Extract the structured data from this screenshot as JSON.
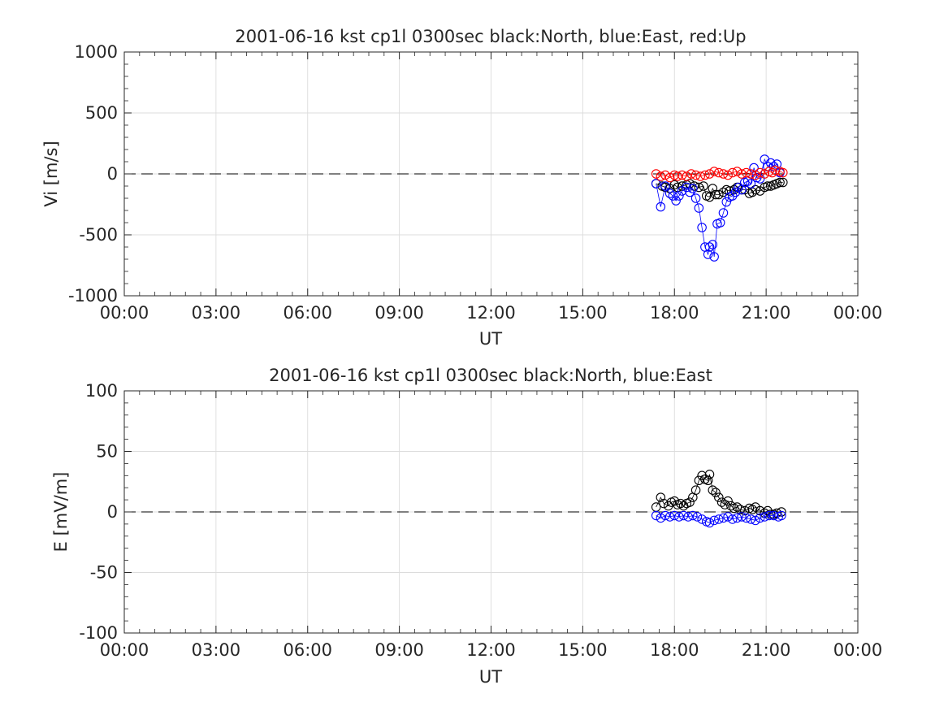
{
  "chart_data": [
    {
      "type": "scatter",
      "title": "2001-06-16 kst cp1l 0300sec black:North, blue:East, red:Up",
      "xlabel": "UT",
      "ylabel": "Vi [m/s]",
      "x_unit": "hours UT",
      "xlim": [
        0,
        24
      ],
      "ylim": [
        -1000,
        1000
      ],
      "xticks": [
        0,
        3,
        6,
        9,
        12,
        15,
        18,
        21,
        24
      ],
      "xtick_labels": [
        "00:00",
        "03:00",
        "06:00",
        "09:00",
        "12:00",
        "15:00",
        "18:00",
        "21:00",
        "00:00"
      ],
      "yticks": [
        -1000,
        -500,
        0,
        500,
        1000
      ],
      "ytick_labels": [
        "-1000",
        "-500",
        "0",
        "500",
        "1000"
      ],
      "grid": true,
      "reference_line": 0,
      "series": [
        {
          "name": "North",
          "color": "#000000",
          "x": [
            17.4,
            17.6,
            17.7,
            17.85,
            18.0,
            18.1,
            18.25,
            18.4,
            18.5,
            18.65,
            18.8,
            18.95,
            19.05,
            19.15,
            19.25,
            19.35,
            19.45,
            19.6,
            19.7,
            19.8,
            19.95,
            20.05,
            20.2,
            20.3,
            20.45,
            20.55,
            20.65,
            20.8,
            20.95,
            21.05,
            21.15,
            21.25,
            21.35,
            21.45,
            21.55
          ],
          "y": [
            -80,
            -100,
            -110,
            -120,
            -90,
            -110,
            -100,
            -90,
            -80,
            -100,
            -110,
            -100,
            -180,
            -190,
            -120,
            -170,
            -170,
            -150,
            -130,
            -140,
            -130,
            -110,
            -130,
            -130,
            -160,
            -150,
            -130,
            -140,
            -110,
            -100,
            -100,
            -90,
            -80,
            -70,
            -70
          ]
        },
        {
          "name": "East",
          "color": "#0000ff",
          "x": [
            17.4,
            17.55,
            17.7,
            17.85,
            17.95,
            18.05,
            18.15,
            18.25,
            18.4,
            18.5,
            18.6,
            18.7,
            18.8,
            18.9,
            19.0,
            19.1,
            19.15,
            19.25,
            19.3,
            19.4,
            19.5,
            19.6,
            19.7,
            19.8,
            19.9,
            20.0,
            20.1,
            20.2,
            20.3,
            20.4,
            20.5,
            20.6,
            20.7,
            20.8,
            20.95,
            21.05,
            21.15,
            21.25,
            21.35,
            21.45
          ],
          "y": [
            -80,
            -270,
            -100,
            -160,
            -180,
            -220,
            -180,
            -140,
            -110,
            -150,
            -120,
            -200,
            -280,
            -440,
            -600,
            -660,
            -600,
            -580,
            -680,
            -410,
            -400,
            -320,
            -230,
            -190,
            -180,
            -150,
            -110,
            -130,
            -70,
            -60,
            -80,
            50,
            -30,
            -40,
            120,
            60,
            90,
            60,
            80,
            10
          ]
        },
        {
          "name": "Up",
          "color": "#ff0000",
          "x": [
            17.4,
            17.55,
            17.7,
            17.85,
            18.0,
            18.1,
            18.25,
            18.4,
            18.55,
            18.7,
            18.85,
            19.0,
            19.15,
            19.3,
            19.45,
            19.6,
            19.75,
            19.9,
            20.05,
            20.2,
            20.35,
            20.5,
            20.65,
            20.8,
            20.95,
            21.1,
            21.2,
            21.3,
            21.45,
            21.55
          ],
          "y": [
            0,
            -20,
            -10,
            -30,
            -10,
            -20,
            -10,
            -20,
            0,
            -10,
            -20,
            -10,
            0,
            20,
            10,
            0,
            -10,
            10,
            20,
            0,
            10,
            0,
            -10,
            10,
            0,
            20,
            10,
            30,
            20,
            10
          ]
        }
      ]
    },
    {
      "type": "scatter",
      "title": "2001-06-16 kst cp1l 0300sec black:North, blue:East",
      "xlabel": "UT",
      "ylabel": "E [mV/m]",
      "x_unit": "hours UT",
      "xlim": [
        0,
        24
      ],
      "ylim": [
        -100,
        100
      ],
      "xticks": [
        0,
        3,
        6,
        9,
        12,
        15,
        18,
        21,
        24
      ],
      "xtick_labels": [
        "00:00",
        "03:00",
        "06:00",
        "09:00",
        "12:00",
        "15:00",
        "18:00",
        "21:00",
        "00:00"
      ],
      "yticks": [
        -100,
        -50,
        0,
        50,
        100
      ],
      "ytick_labels": [
        "-100",
        "-50",
        "0",
        "50",
        "100"
      ],
      "grid": true,
      "reference_line": 0,
      "series": [
        {
          "name": "North",
          "color": "#000000",
          "x": [
            17.4,
            17.55,
            17.65,
            17.8,
            17.9,
            18.0,
            18.1,
            18.2,
            18.3,
            18.4,
            18.5,
            18.6,
            18.7,
            18.8,
            18.9,
            19.0,
            19.1,
            19.15,
            19.25,
            19.35,
            19.45,
            19.55,
            19.65,
            19.75,
            19.85,
            19.95,
            20.05,
            20.15,
            20.3,
            20.45,
            20.55,
            20.65,
            20.8,
            20.95,
            21.05,
            21.15,
            21.25,
            21.35,
            21.5
          ],
          "y": [
            4,
            12,
            7,
            5,
            8,
            9,
            6,
            7,
            5,
            7,
            8,
            12,
            18,
            26,
            30,
            27,
            26,
            31,
            18,
            16,
            12,
            8,
            6,
            9,
            5,
            3,
            4,
            2,
            1,
            3,
            2,
            4,
            1,
            -1,
            1,
            -2,
            -2,
            -1,
            0
          ]
        },
        {
          "name": "East",
          "color": "#0000ff",
          "x": [
            17.4,
            17.55,
            17.7,
            17.85,
            18.0,
            18.15,
            18.3,
            18.45,
            18.6,
            18.75,
            18.9,
            19.05,
            19.15,
            19.3,
            19.45,
            19.6,
            19.75,
            19.9,
            20.05,
            20.2,
            20.35,
            20.5,
            20.65,
            20.8,
            20.95,
            21.1,
            21.25,
            21.4,
            21.5
          ],
          "y": [
            -3,
            -5,
            -3,
            -4,
            -3,
            -4,
            -3,
            -4,
            -3,
            -4,
            -6,
            -8,
            -9,
            -7,
            -6,
            -5,
            -4,
            -6,
            -5,
            -4,
            -5,
            -6,
            -7,
            -5,
            -4,
            -3,
            -3,
            -4,
            -3
          ]
        }
      ]
    }
  ]
}
